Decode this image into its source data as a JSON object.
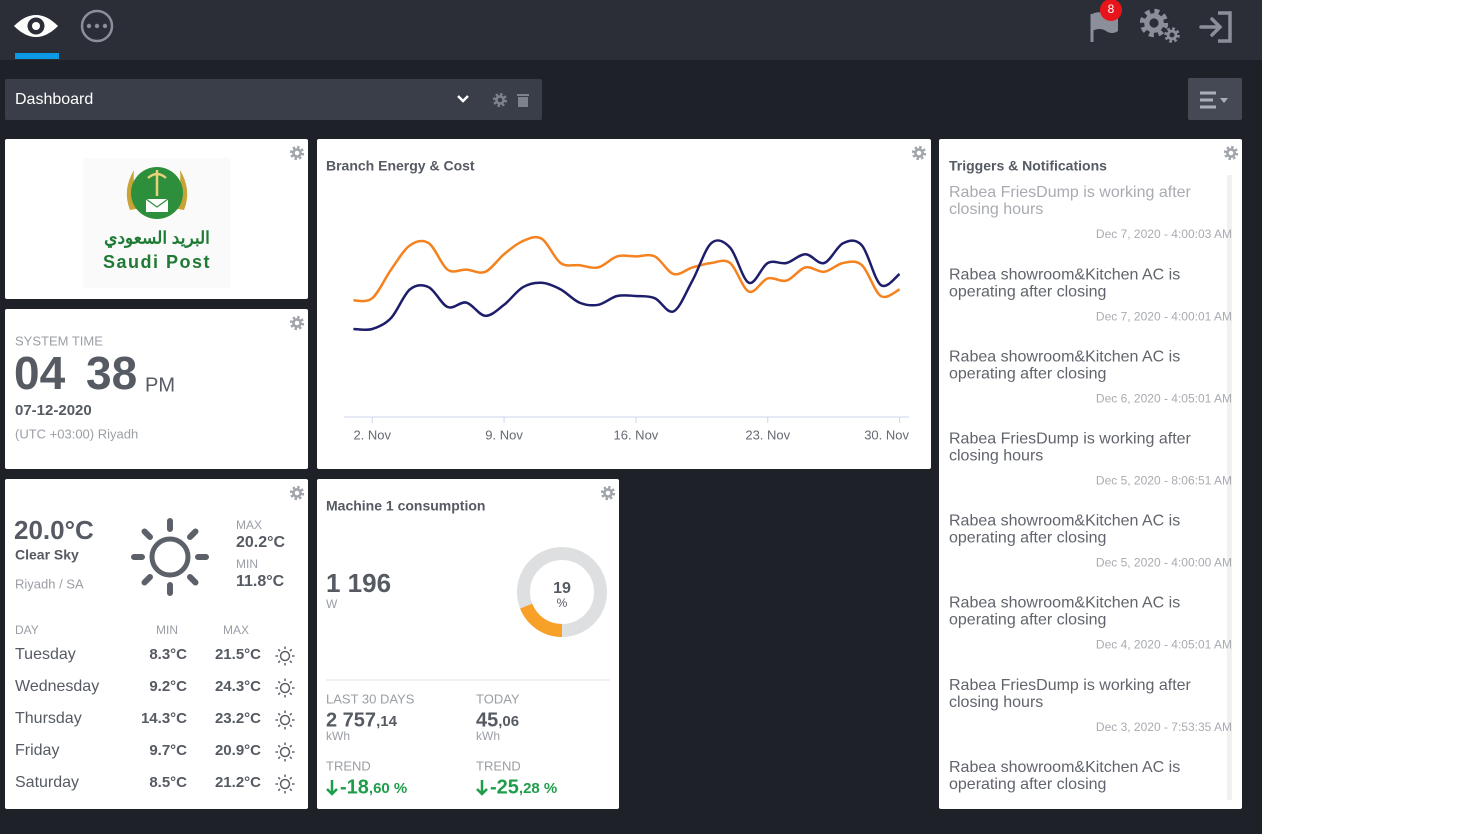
{
  "nav": {
    "badge": "8"
  },
  "toolbar": {
    "dashboard": "Dashboard"
  },
  "logo": {
    "arabic": "البريد السعودي",
    "name": "Saudi Post"
  },
  "clock": {
    "label": "SYSTEM TIME",
    "hours": "04",
    "minutes": "38",
    "ampm": "PM",
    "date": "07-12-2020",
    "timezone": "(UTC +03:00) Riyadh"
  },
  "weather": {
    "temperature": "20.0°C",
    "condition": "Clear Sky",
    "location": "Riyadh / SA",
    "max_label": "MAX",
    "max": "20.2°C",
    "min_label": "MIN",
    "min": "11.8°C",
    "forecast": {
      "headers": [
        "DAY",
        "MIN",
        "MAX"
      ],
      "rows": [
        [
          "Tuesday",
          "8.3°C",
          "21.5°C"
        ],
        [
          "Wednesday",
          "9.2°C",
          "24.3°C"
        ],
        [
          "Thursday",
          "14.3°C",
          "23.2°C"
        ],
        [
          "Friday",
          "9.7°C",
          "20.9°C"
        ],
        [
          "Saturday",
          "8.5°C",
          "21.2°C"
        ]
      ]
    }
  },
  "chart_data": {
    "type": "line",
    "title": "Branch Energy & Cost",
    "x": [
      1,
      2,
      3,
      4,
      5,
      6,
      7,
      8,
      9,
      10,
      11,
      12,
      13,
      14,
      15,
      16,
      17,
      18,
      19,
      20,
      21,
      22,
      23,
      24,
      25,
      26,
      27,
      28,
      29,
      30
    ],
    "xlim": [
      0.5,
      30.5
    ],
    "xticks": [
      {
        "value": 2,
        "label": "2. Nov"
      },
      {
        "value": 9,
        "label": "9. Nov"
      },
      {
        "value": 16,
        "label": "16. Nov"
      },
      {
        "value": 23,
        "label": "23. Nov"
      },
      {
        "value": 30,
        "label": "30. Nov"
      }
    ],
    "ylim": [
      0,
      100
    ],
    "series": [
      {
        "color": "#f5821f",
        "values": [
          53,
          54,
          67,
          78,
          79,
          67,
          67,
          66,
          74,
          80,
          81,
          70,
          69,
          68,
          73,
          73,
          73,
          65,
          68,
          70,
          70,
          57,
          63,
          62,
          68,
          66,
          70,
          69,
          55,
          58
        ]
      },
      {
        "color": "#1d1d6b",
        "values": [
          40,
          40,
          45,
          58,
          59,
          50,
          52,
          46,
          51,
          59,
          61,
          58,
          52,
          51,
          55,
          55,
          54,
          48,
          62,
          79,
          77,
          61,
          70,
          70,
          74,
          70,
          79,
          78,
          60,
          65
        ]
      }
    ]
  },
  "machine": {
    "title": "Machine 1 consumption",
    "power": "1 196",
    "power_unit": "W",
    "gauge": {
      "value": 19,
      "label": "%"
    },
    "stats": [
      {
        "label": "LAST 30 DAYS",
        "integer": "2 757",
        "decimal": ",14",
        "unit": "kWh"
      },
      {
        "label": "TODAY",
        "integer": "45",
        "decimal": ",06",
        "unit": "kWh"
      },
      {
        "label": "TREND",
        "integer": "-18",
        "decimal": ",60 %"
      },
      {
        "label": "TREND",
        "integer": "-25",
        "decimal": ",28 %"
      }
    ]
  },
  "notifications": {
    "title": "Triggers & Notifications",
    "items": [
      {
        "lines": [
          "Rabea FriesDump is working after",
          "closing hours"
        ],
        "time": "Dec 7, 2020 - 4:00:03 AM"
      },
      {
        "lines": [
          "Rabea showroom&Kitchen AC is",
          "operating after closing"
        ],
        "time": "Dec 7, 2020 - 4:00:01 AM"
      },
      {
        "lines": [
          "Rabea showroom&Kitchen AC is",
          "operating after closing"
        ],
        "time": "Dec 6, 2020 - 4:05:01 AM"
      },
      {
        "lines": [
          "Rabea FriesDump is working after",
          "closing hours"
        ],
        "time": "Dec 5, 2020 - 8:06:51 AM"
      },
      {
        "lines": [
          "Rabea showroom&Kitchen AC is",
          "operating after closing"
        ],
        "time": "Dec 5, 2020 - 4:00:00 AM"
      },
      {
        "lines": [
          "Rabea showroom&Kitchen AC is",
          "operating after closing"
        ],
        "time": "Dec 4, 2020 - 4:05:01 AM"
      },
      {
        "lines": [
          "Rabea FriesDump is working after",
          "closing hours"
        ],
        "time": "Dec 3, 2020 - 7:53:35 AM"
      },
      {
        "lines": [
          "Rabea showroom&Kitchen AC is",
          "operating after closing"
        ]
      }
    ]
  }
}
